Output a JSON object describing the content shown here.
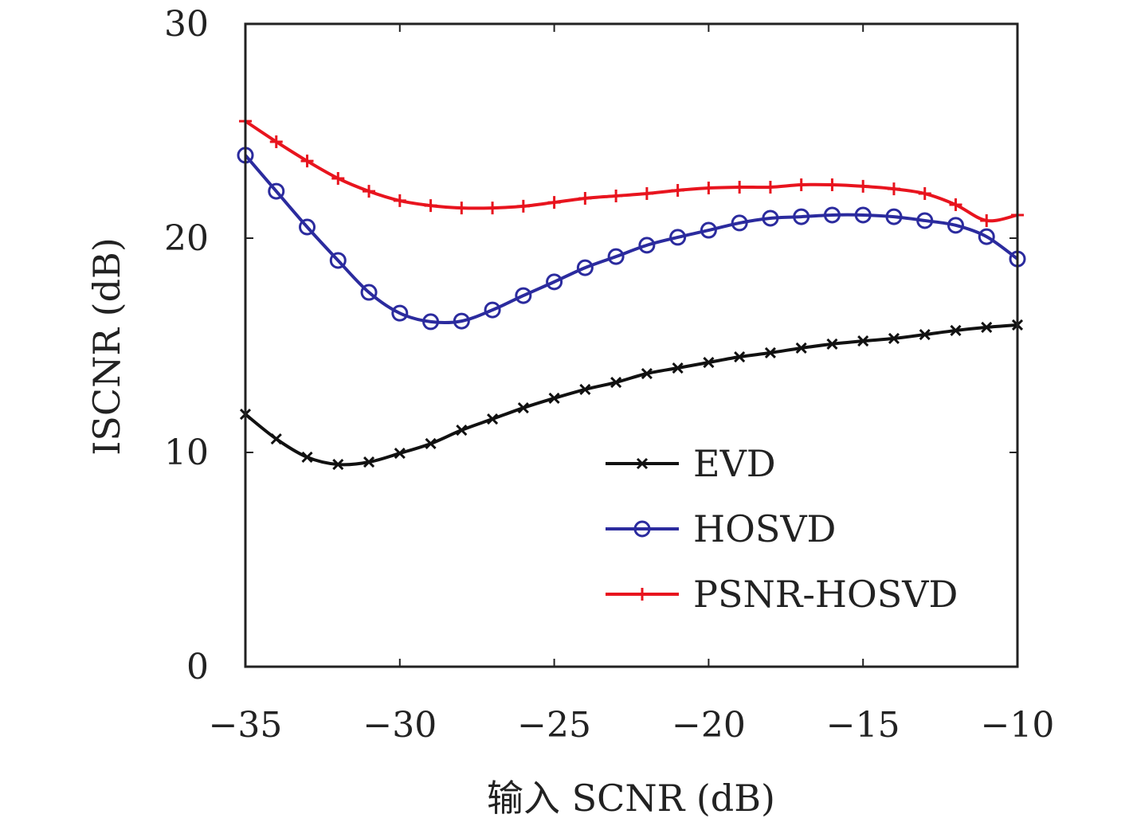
{
  "chart_data": {
    "type": "line",
    "title": "",
    "xlabel": "输入 SCNR (dB)",
    "ylabel": "ISCNR (dB)",
    "xlim": [
      -35,
      -10
    ],
    "ylim": [
      0,
      30
    ],
    "xticks": [
      -35,
      -30,
      -25,
      -20,
      -15,
      -10
    ],
    "xtick_labels": [
      "−35",
      "−30",
      "−25",
      "−20",
      "−15",
      "−10"
    ],
    "yticks": [
      0,
      10,
      20,
      30
    ],
    "ytick_labels": [
      "0",
      "10",
      "20",
      "30"
    ],
    "grid": false,
    "legend_position": "lower-right",
    "x": [
      -35,
      -34,
      -33,
      -32,
      -31,
      -30,
      -29,
      -28,
      -27,
      -26,
      -25,
      -24,
      -23,
      -22,
      -21,
      -20,
      -19,
      -18,
      -17,
      -16,
      -15,
      -14,
      -13,
      -12,
      -11,
      -10
    ],
    "series": [
      {
        "name": "EVD",
        "color": "#111111",
        "marker": "x",
        "values": [
          11.78,
          10.63,
          9.78,
          9.44,
          9.55,
          9.96,
          10.41,
          11.04,
          11.56,
          12.08,
          12.53,
          12.94,
          13.27,
          13.68,
          13.94,
          14.2,
          14.46,
          14.65,
          14.87,
          15.06,
          15.2,
          15.32,
          15.5,
          15.69,
          15.84,
          15.95
        ]
      },
      {
        "name": "HOSVD",
        "color": "#2b2b9e",
        "marker": "o",
        "values": [
          23.87,
          22.19,
          20.52,
          18.96,
          17.47,
          16.5,
          16.1,
          16.13,
          16.65,
          17.32,
          17.96,
          18.62,
          19.14,
          19.67,
          20.04,
          20.37,
          20.71,
          20.93,
          21.0,
          21.08,
          21.08,
          21.0,
          20.82,
          20.6,
          20.07,
          19.03
        ]
      },
      {
        "name": "PSNR-HOSVD",
        "color": "#e8141e",
        "marker": "+",
        "values": [
          25.46,
          24.5,
          23.6,
          22.79,
          22.19,
          21.75,
          21.52,
          21.41,
          21.41,
          21.49,
          21.67,
          21.86,
          21.97,
          22.08,
          22.23,
          22.34,
          22.38,
          22.38,
          22.49,
          22.49,
          22.42,
          22.3,
          22.08,
          21.56,
          20.82,
          21.08
        ]
      }
    ]
  }
}
